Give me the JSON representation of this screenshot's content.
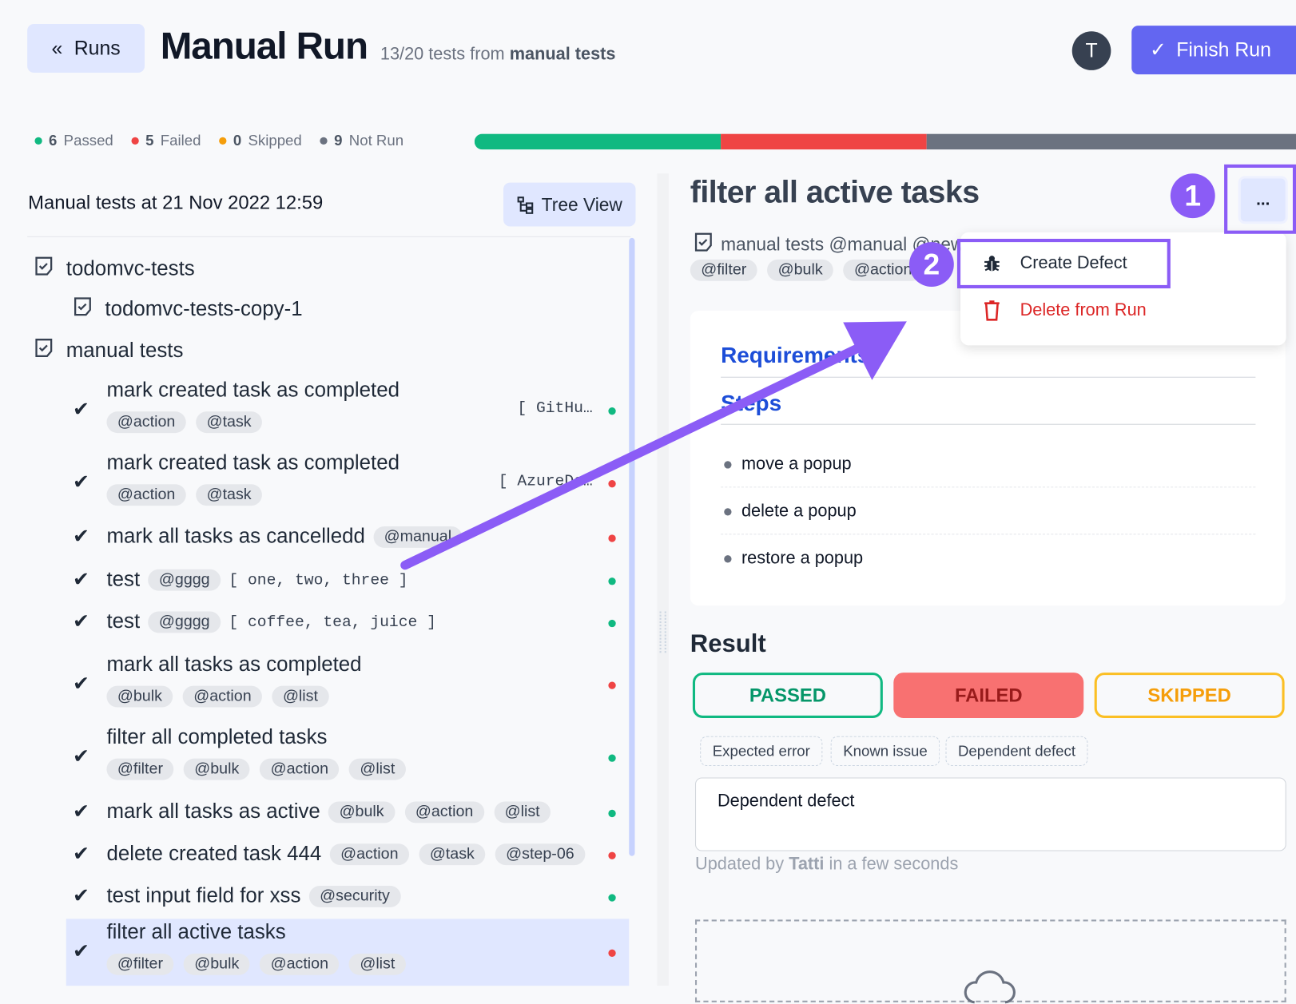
{
  "header": {
    "back_label": "Runs",
    "title": "Manual Run",
    "subtitle_prefix": "13/20 tests from",
    "subtitle_suite": "manual tests",
    "avatar_initial": "T",
    "finish_label": "Finish Run"
  },
  "stats": [
    {
      "count": "6",
      "label": "Passed",
      "color": "#10b981"
    },
    {
      "count": "5",
      "label": "Failed",
      "color": "#ef4444"
    },
    {
      "count": "0",
      "label": "Skipped",
      "color": "#f59e0b"
    },
    {
      "count": "9",
      "label": "Not Run",
      "color": "#6b7280"
    }
  ],
  "progress": {
    "passed": 6,
    "failed": 5,
    "skipped": 0,
    "not_run": 9,
    "colors": {
      "passed": "#10b981",
      "failed": "#ef4444",
      "not_run": "#6b7280"
    }
  },
  "sidebar": {
    "title": "Manual tests at 21 Nov 2022 12:59",
    "tree_view_label": "Tree View",
    "suites": [
      "todomvc-tests",
      "todomvc-tests-copy-1",
      "manual tests"
    ],
    "tests": [
      {
        "title": "mark created task as completed",
        "tags": [
          "@action",
          "@task"
        ],
        "ref": "[ GitHu…",
        "status": "passed"
      },
      {
        "title": "mark created task as completed",
        "tags": [
          "@action",
          "@task"
        ],
        "ref": "[ AzureDe…",
        "status": "failed"
      },
      {
        "title": "mark all tasks as cancelledd",
        "tags": [
          "@manual"
        ],
        "status": "failed"
      },
      {
        "title": "test",
        "tags": [
          "@gggg"
        ],
        "params": "[ one, two, three ]",
        "status": "passed"
      },
      {
        "title": "test",
        "tags": [
          "@gggg"
        ],
        "params": "[ coffee, tea, juice ]",
        "status": "passed"
      },
      {
        "title": "mark all tasks as completed",
        "tags": [
          "@bulk",
          "@action",
          "@list"
        ],
        "status": "failed"
      },
      {
        "title": "filter all completed tasks",
        "tags": [
          "@filter",
          "@bulk",
          "@action",
          "@list"
        ],
        "status": "passed"
      },
      {
        "title": "mark all tasks as active",
        "tags": [
          "@bulk",
          "@action",
          "@list"
        ],
        "status": "passed"
      },
      {
        "title": "delete created task 444",
        "tags": [
          "@action",
          "@task",
          "@step-06"
        ],
        "status": "failed"
      },
      {
        "title": "test input field for xss",
        "tags": [
          "@security"
        ],
        "status": "passed"
      },
      {
        "title": "filter all active tasks",
        "tags": [
          "@filter",
          "@bulk",
          "@action",
          "@list"
        ],
        "status": "failed",
        "selected": true
      }
    ]
  },
  "detail": {
    "title": "filter all active tasks",
    "suite_line": "manual tests @manual @new",
    "tags": [
      "@filter",
      "@bulk",
      "@action"
    ],
    "requirements_heading": "Requirements",
    "steps_heading": "Steps",
    "steps": [
      "move a popup",
      "delete a popup",
      "restore a popup"
    ],
    "result_heading": "Result",
    "result_buttons": {
      "passed": "PASSED",
      "failed": "FAILED",
      "skipped": "SKIPPED"
    },
    "selected_result": "FAILED",
    "chips": [
      "Expected error",
      "Known issue",
      "Dependent defect"
    ],
    "comment": "Dependent defect",
    "updated_prefix": "Updated by",
    "updated_user": "Tatti",
    "updated_suffix": "in a few seconds"
  },
  "menu": {
    "more_label": "...",
    "items": [
      {
        "label": "Create Defect",
        "icon": "bug-icon",
        "color": "#1f2937"
      },
      {
        "label": "Delete from Run",
        "icon": "trash-icon",
        "color": "#dc2626"
      }
    ]
  },
  "annotations": {
    "step1": "1",
    "step2": "2",
    "color": "#8b5cf6"
  }
}
